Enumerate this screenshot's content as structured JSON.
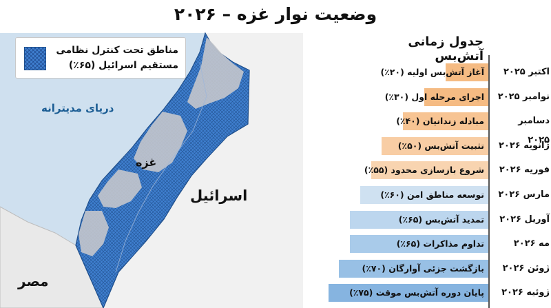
{
  "title": "وضعیت نوار غزه – ۲۰۲۶",
  "map": {
    "legend_text": "مناطق تحت کنترل نظامی مستقیم اسرائیل (۶۵٪)",
    "sea_label": "دریای مدیترانه",
    "gaza_label": "غزه",
    "israel_label": "اسرائیل",
    "egypt_label": "مصر",
    "colors": {
      "sea": "#cfe0ef",
      "land": "#f1f1f1",
      "controlled_area": "#3f7fcf",
      "hatch": "#1f4f8c",
      "uncontrolled_area": "#c4c7cc"
    }
  },
  "timeline": {
    "title": "جدول زمانی آتش‌بس",
    "items": [
      {
        "date": "اکتبر ۲۰۲۵",
        "label": "آغاز آتش‌بس اولیه (۲۰٪)",
        "percent": 20,
        "color": "#f5bb83"
      },
      {
        "date": "نوامبر ۲۰۲۵",
        "label": "اجرای مرحله اول (۳۰٪)",
        "percent": 30,
        "color": "#f5bb83"
      },
      {
        "date": "دسامبر ۲۰۲۵",
        "label": "مبادله زندانیان (۴۰٪)",
        "percent": 40,
        "color": "#f7c493"
      },
      {
        "date": "ژانویه ۲۰۲۶",
        "label": "تثبیت آتش‌بس (۵۰٪)",
        "percent": 50,
        "color": "#f8cda4"
      },
      {
        "date": "فوریه ۲۰۲۶",
        "label": "شروع بازسازی محدود (۵۵٪)",
        "percent": 55,
        "color": "#f8d4b0"
      },
      {
        "date": "مارس ۲۰۲۶",
        "label": "توسعه مناطق امن (۶۰٪)",
        "percent": 60,
        "color": "#cfe1f1"
      },
      {
        "date": "آوریل ۲۰۲۶",
        "label": "تمدید آتش‌بس (۶۵٪)",
        "percent": 65,
        "color": "#bcd6ee"
      },
      {
        "date": "مه ۲۰۲۶",
        "label": "تداوم مذاکرات (۶۵٪)",
        "percent": 65,
        "color": "#a9cbea"
      },
      {
        "date": "ژوئن ۲۰۲۶",
        "label": "بازگشت جزئی آوارگان (۷۰٪)",
        "percent": 70,
        "color": "#98c0e5"
      },
      {
        "date": "ژوئیه ۲۰۲۶",
        "label": "پایان دوره آتش‌بس موقت (۷۵٪)",
        "percent": 75,
        "color": "#86b4e0"
      }
    ]
  }
}
